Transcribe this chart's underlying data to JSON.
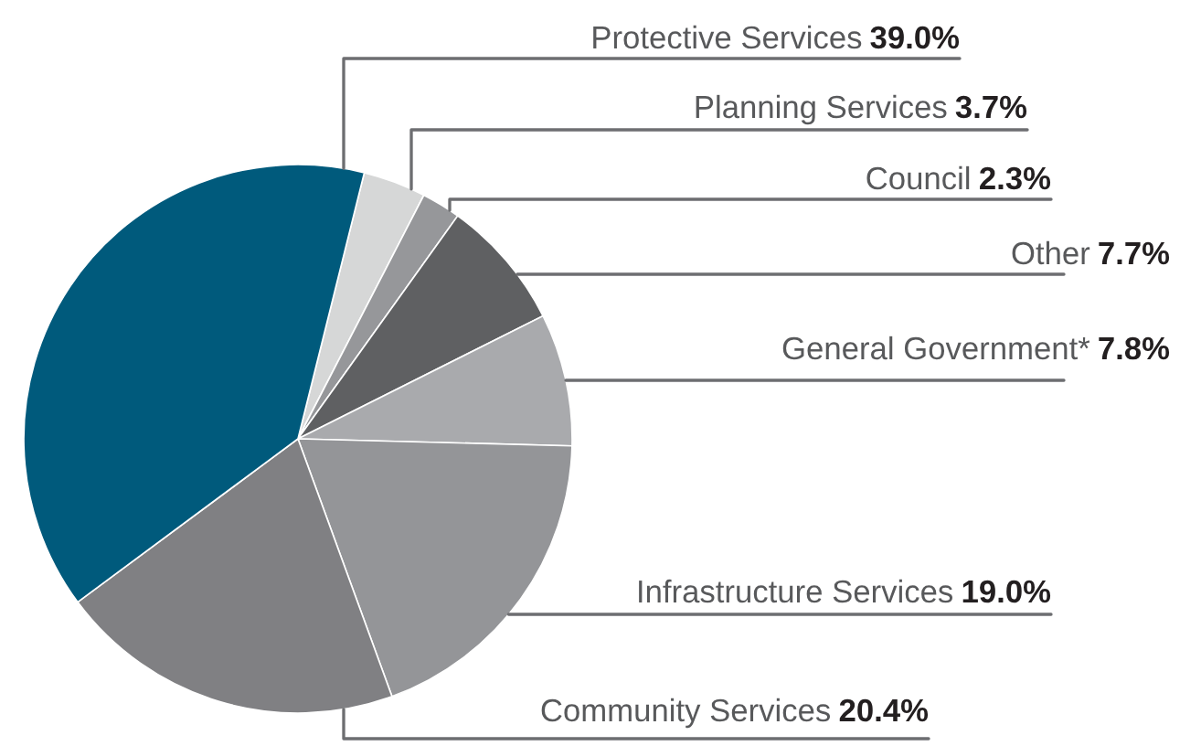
{
  "chart_data": {
    "type": "pie",
    "categories": [
      "Planning Services",
      "Council",
      "Other",
      "General Government*",
      "Infrastructure Services",
      "Community Services",
      "Protective Services"
    ],
    "values": [
      3.7,
      2.3,
      7.7,
      7.8,
      19.0,
      20.4,
      39.0
    ],
    "value_labels": [
      "3.7%",
      "2.3%",
      "7.7%",
      "7.8%",
      "19.0%",
      "20.4%",
      "39.0%"
    ],
    "colors": [
      "#d6d7d7",
      "#96979a",
      "#5f6062",
      "#a9aaad",
      "#949598",
      "#808083",
      "#005a7c"
    ]
  }
}
